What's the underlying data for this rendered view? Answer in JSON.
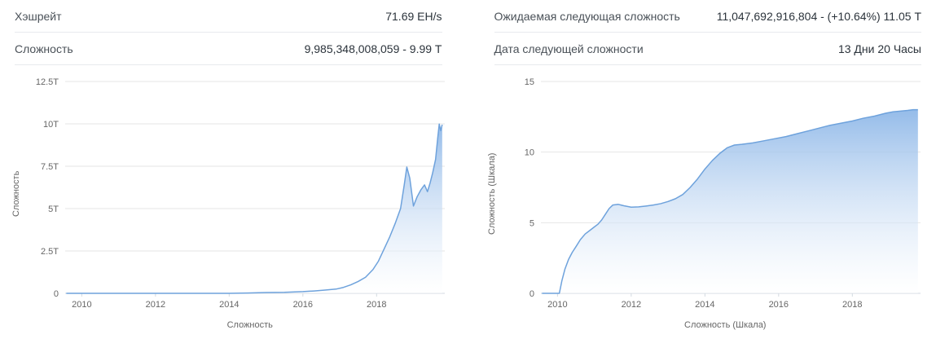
{
  "stats": {
    "left": [
      {
        "label": "Хэшрейт",
        "value": "71.69 EH/s"
      },
      {
        "label": "Сложность",
        "value": "9,985,348,008,059 - 9.99 Т"
      }
    ],
    "right": [
      {
        "label": "Ожидаемая следующая сложность",
        "value": "11,047,692,916,804 - (+10.64%) 11.05 Т"
      },
      {
        "label": "Дата следующей сложности",
        "value": "13 Дни 20 Часы"
      }
    ]
  },
  "colors": {
    "line": "#6ea2dc",
    "fill_top": "#8fb8e8",
    "fill_bottom": "#ffffff",
    "grid": "#e6e6e6",
    "axis": "#d3dae1",
    "tick_text": "#666666"
  },
  "chart_data": [
    {
      "type": "area",
      "title": "",
      "ylabel": "Сложность",
      "xlabel": "Сложность",
      "ylim": [
        0,
        12.5
      ],
      "xlim": [
        2009.55,
        2019.85
      ],
      "yticks": [
        {
          "v": 0,
          "label": "0"
        },
        {
          "v": 2.5,
          "label": "2.5T"
        },
        {
          "v": 5,
          "label": "5T"
        },
        {
          "v": 7.5,
          "label": "7.5T"
        },
        {
          "v": 10,
          "label": "10T"
        },
        {
          "v": 12.5,
          "label": "12.5T"
        }
      ],
      "xticks": [
        {
          "v": 2010,
          "label": "2010"
        },
        {
          "v": 2012,
          "label": "2012"
        },
        {
          "v": 2014,
          "label": "2014"
        },
        {
          "v": 2016,
          "label": "2016"
        },
        {
          "v": 2018,
          "label": "2018"
        }
      ],
      "x": [
        2009.58,
        2010,
        2010.5,
        2011,
        2011.5,
        2012,
        2012.5,
        2013,
        2013.5,
        2014,
        2014.5,
        2015,
        2015.5,
        2016,
        2016.3,
        2016.6,
        2016.9,
        2017.1,
        2017.3,
        2017.5,
        2017.7,
        2017.9,
        2018.05,
        2018.2,
        2018.35,
        2018.5,
        2018.65,
        2018.75,
        2018.82,
        2018.9,
        2019.0,
        2019.1,
        2019.2,
        2019.3,
        2019.38,
        2019.45,
        2019.52,
        2019.6,
        2019.66,
        2019.7,
        2019.74,
        2019.78
      ],
      "y": [
        0,
        0,
        0,
        0,
        0,
        0,
        0,
        0.0001,
        0.0005,
        0.001,
        0.02,
        0.045,
        0.06,
        0.1,
        0.14,
        0.19,
        0.25,
        0.35,
        0.5,
        0.7,
        0.95,
        1.4,
        1.9,
        2.6,
        3.3,
        4.1,
        5.0,
        6.4,
        7.45,
        6.8,
        5.15,
        5.7,
        6.1,
        6.4,
        6.0,
        6.5,
        7.1,
        7.9,
        9.2,
        9.99,
        9.6,
        9.95
      ],
      "units": "T (trillions)"
    },
    {
      "type": "area",
      "title": "",
      "ylabel": "Сложность (Шкала)",
      "xlabel": "Сложность (Шкала)",
      "ylim": [
        0,
        15
      ],
      "xlim": [
        2009.55,
        2019.85
      ],
      "yticks": [
        {
          "v": 0,
          "label": "0"
        },
        {
          "v": 5,
          "label": "5"
        },
        {
          "v": 10,
          "label": "10"
        },
        {
          "v": 15,
          "label": "15"
        }
      ],
      "xticks": [
        {
          "v": 2010,
          "label": "2010"
        },
        {
          "v": 2012,
          "label": "2012"
        },
        {
          "v": 2014,
          "label": "2014"
        },
        {
          "v": 2016,
          "label": "2016"
        },
        {
          "v": 2018,
          "label": "2018"
        }
      ],
      "x": [
        2009.58,
        2009.9,
        2010.05,
        2010.12,
        2010.2,
        2010.3,
        2010.4,
        2010.5,
        2010.62,
        2010.75,
        2010.9,
        2011.0,
        2011.1,
        2011.2,
        2011.3,
        2011.4,
        2011.5,
        2011.65,
        2011.8,
        2012.0,
        2012.2,
        2012.4,
        2012.6,
        2012.8,
        2013.0,
        2013.2,
        2013.4,
        2013.6,
        2013.8,
        2014.0,
        2014.2,
        2014.4,
        2014.6,
        2014.8,
        2015.0,
        2015.3,
        2015.6,
        2015.9,
        2016.2,
        2016.5,
        2016.8,
        2017.1,
        2017.4,
        2017.7,
        2018.0,
        2018.3,
        2018.6,
        2018.9,
        2019.1,
        2019.3,
        2019.5,
        2019.65,
        2019.78
      ],
      "y": [
        0,
        0,
        0,
        0.9,
        1.7,
        2.4,
        2.9,
        3.3,
        3.8,
        4.2,
        4.5,
        4.7,
        4.9,
        5.2,
        5.6,
        6.0,
        6.25,
        6.3,
        6.2,
        6.1,
        6.12,
        6.18,
        6.25,
        6.35,
        6.5,
        6.7,
        7.0,
        7.5,
        8.1,
        8.8,
        9.4,
        9.9,
        10.3,
        10.5,
        10.55,
        10.65,
        10.8,
        10.95,
        11.1,
        11.3,
        11.5,
        11.7,
        11.9,
        12.05,
        12.2,
        12.4,
        12.55,
        12.75,
        12.85,
        12.9,
        12.95,
        13.0,
        13.0
      ],
      "units": "log scale"
    }
  ]
}
